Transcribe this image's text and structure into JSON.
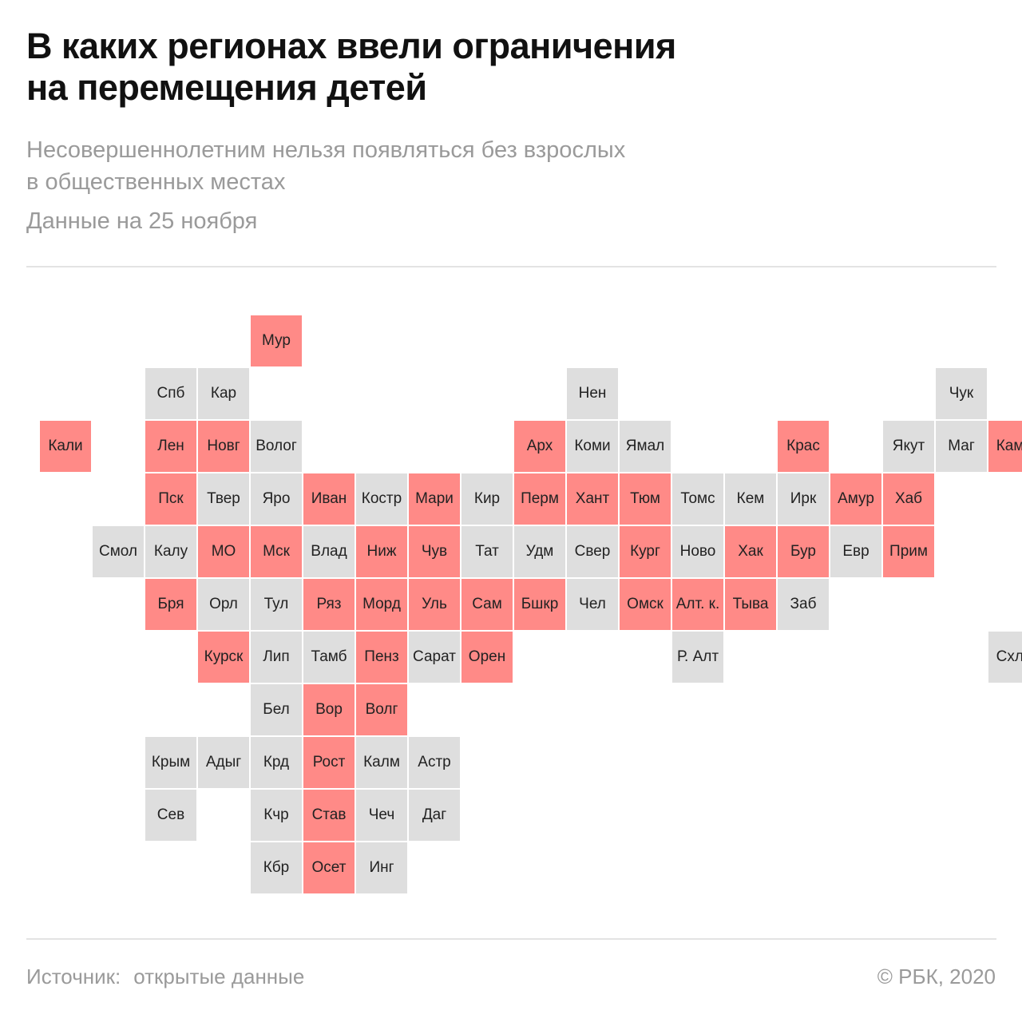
{
  "header": {
    "title_line1": "В каких регионах ввели ограничения",
    "title_line2": "на перемещения детей",
    "subtitle_line1": "Несовершеннолетним нельзя появляться без взрослых",
    "subtitle_line2": "в общественных местах",
    "date": "Данные на 25 ноября"
  },
  "colors": {
    "restricted": "#ff8a87",
    "unrestricted": "#dedede"
  },
  "map": {
    "tiles": [
      {
        "label": "Мур",
        "row": 0,
        "col": 4,
        "restricted": true
      },
      {
        "label": "Спб",
        "row": 1,
        "col": 2,
        "restricted": false
      },
      {
        "label": "Кар",
        "row": 1,
        "col": 3,
        "restricted": false
      },
      {
        "label": "Нен",
        "row": 1,
        "col": 10,
        "restricted": false
      },
      {
        "label": "Чук",
        "row": 1,
        "col": 17,
        "restricted": false
      },
      {
        "label": "Кали",
        "row": 2,
        "col": 0,
        "restricted": true
      },
      {
        "label": "Лен",
        "row": 2,
        "col": 2,
        "restricted": true
      },
      {
        "label": "Новг",
        "row": 2,
        "col": 3,
        "restricted": true
      },
      {
        "label": "Волог",
        "row": 2,
        "col": 4,
        "restricted": false
      },
      {
        "label": "Арх",
        "row": 2,
        "col": 9,
        "restricted": true
      },
      {
        "label": "Коми",
        "row": 2,
        "col": 10,
        "restricted": false
      },
      {
        "label": "Ямал",
        "row": 2,
        "col": 11,
        "restricted": false
      },
      {
        "label": "Крас",
        "row": 2,
        "col": 14,
        "restricted": true
      },
      {
        "label": "Якут",
        "row": 2,
        "col": 16,
        "restricted": false
      },
      {
        "label": "Маг",
        "row": 2,
        "col": 17,
        "restricted": false
      },
      {
        "label": "Камч",
        "row": 2,
        "col": 18,
        "restricted": true
      },
      {
        "label": "Пск",
        "row": 3,
        "col": 2,
        "restricted": true
      },
      {
        "label": "Твер",
        "row": 3,
        "col": 3,
        "restricted": false
      },
      {
        "label": "Яро",
        "row": 3,
        "col": 4,
        "restricted": false
      },
      {
        "label": "Иван",
        "row": 3,
        "col": 5,
        "restricted": true
      },
      {
        "label": "Костр",
        "row": 3,
        "col": 6,
        "restricted": false
      },
      {
        "label": "Мари",
        "row": 3,
        "col": 7,
        "restricted": true
      },
      {
        "label": "Кир",
        "row": 3,
        "col": 8,
        "restricted": false
      },
      {
        "label": "Перм",
        "row": 3,
        "col": 9,
        "restricted": true
      },
      {
        "label": "Хант",
        "row": 3,
        "col": 10,
        "restricted": true
      },
      {
        "label": "Тюм",
        "row": 3,
        "col": 11,
        "restricted": true
      },
      {
        "label": "Томс",
        "row": 3,
        "col": 12,
        "restricted": false
      },
      {
        "label": "Кем",
        "row": 3,
        "col": 13,
        "restricted": false
      },
      {
        "label": "Ирк",
        "row": 3,
        "col": 14,
        "restricted": false
      },
      {
        "label": "Амур",
        "row": 3,
        "col": 15,
        "restricted": true
      },
      {
        "label": "Хаб",
        "row": 3,
        "col": 16,
        "restricted": true
      },
      {
        "label": "Смол",
        "row": 4,
        "col": 1,
        "restricted": false
      },
      {
        "label": "Калу",
        "row": 4,
        "col": 2,
        "restricted": false
      },
      {
        "label": "МО",
        "row": 4,
        "col": 3,
        "restricted": true
      },
      {
        "label": "Мск",
        "row": 4,
        "col": 4,
        "restricted": true
      },
      {
        "label": "Влад",
        "row": 4,
        "col": 5,
        "restricted": false
      },
      {
        "label": "Ниж",
        "row": 4,
        "col": 6,
        "restricted": true
      },
      {
        "label": "Чув",
        "row": 4,
        "col": 7,
        "restricted": true
      },
      {
        "label": "Тат",
        "row": 4,
        "col": 8,
        "restricted": false
      },
      {
        "label": "Удм",
        "row": 4,
        "col": 9,
        "restricted": false
      },
      {
        "label": "Свер",
        "row": 4,
        "col": 10,
        "restricted": false
      },
      {
        "label": "Кург",
        "row": 4,
        "col": 11,
        "restricted": true
      },
      {
        "label": "Ново",
        "row": 4,
        "col": 12,
        "restricted": false
      },
      {
        "label": "Хак",
        "row": 4,
        "col": 13,
        "restricted": true
      },
      {
        "label": "Бур",
        "row": 4,
        "col": 14,
        "restricted": true
      },
      {
        "label": "Евр",
        "row": 4,
        "col": 15,
        "restricted": false
      },
      {
        "label": "Прим",
        "row": 4,
        "col": 16,
        "restricted": true
      },
      {
        "label": "Бря",
        "row": 5,
        "col": 2,
        "restricted": true
      },
      {
        "label": "Орл",
        "row": 5,
        "col": 3,
        "restricted": false
      },
      {
        "label": "Тул",
        "row": 5,
        "col": 4,
        "restricted": false
      },
      {
        "label": "Ряз",
        "row": 5,
        "col": 5,
        "restricted": true
      },
      {
        "label": "Морд",
        "row": 5,
        "col": 6,
        "restricted": true
      },
      {
        "label": "Уль",
        "row": 5,
        "col": 7,
        "restricted": true
      },
      {
        "label": "Сам",
        "row": 5,
        "col": 8,
        "restricted": true
      },
      {
        "label": "Бшкр",
        "row": 5,
        "col": 9,
        "restricted": true
      },
      {
        "label": "Чел",
        "row": 5,
        "col": 10,
        "restricted": false
      },
      {
        "label": "Омск",
        "row": 5,
        "col": 11,
        "restricted": true
      },
      {
        "label": "Алт. к.",
        "row": 5,
        "col": 12,
        "restricted": true
      },
      {
        "label": "Тыва",
        "row": 5,
        "col": 13,
        "restricted": true
      },
      {
        "label": "Заб",
        "row": 5,
        "col": 14,
        "restricted": false
      },
      {
        "label": "Курск",
        "row": 6,
        "col": 3,
        "restricted": true
      },
      {
        "label": "Лип",
        "row": 6,
        "col": 4,
        "restricted": false
      },
      {
        "label": "Тамб",
        "row": 6,
        "col": 5,
        "restricted": false
      },
      {
        "label": "Пенз",
        "row": 6,
        "col": 6,
        "restricted": true
      },
      {
        "label": "Сарат",
        "row": 6,
        "col": 7,
        "restricted": false
      },
      {
        "label": "Орен",
        "row": 6,
        "col": 8,
        "restricted": true
      },
      {
        "label": "Р. Алт",
        "row": 6,
        "col": 12,
        "restricted": false
      },
      {
        "label": "Схлн",
        "row": 6,
        "col": 18,
        "restricted": false
      },
      {
        "label": "Бел",
        "row": 7,
        "col": 4,
        "restricted": false
      },
      {
        "label": "Вор",
        "row": 7,
        "col": 5,
        "restricted": true
      },
      {
        "label": "Волг",
        "row": 7,
        "col": 6,
        "restricted": true
      },
      {
        "label": "Крым",
        "row": 8,
        "col": 2,
        "restricted": false
      },
      {
        "label": "Адыг",
        "row": 8,
        "col": 3,
        "restricted": false
      },
      {
        "label": "Крд",
        "row": 8,
        "col": 4,
        "restricted": false
      },
      {
        "label": "Рост",
        "row": 8,
        "col": 5,
        "restricted": true
      },
      {
        "label": "Калм",
        "row": 8,
        "col": 6,
        "restricted": false
      },
      {
        "label": "Астр",
        "row": 8,
        "col": 7,
        "restricted": false
      },
      {
        "label": "Сев",
        "row": 9,
        "col": 2,
        "restricted": false
      },
      {
        "label": "Кчр",
        "row": 9,
        "col": 4,
        "restricted": false
      },
      {
        "label": "Став",
        "row": 9,
        "col": 5,
        "restricted": true
      },
      {
        "label": "Чеч",
        "row": 9,
        "col": 6,
        "restricted": false
      },
      {
        "label": "Даг",
        "row": 9,
        "col": 7,
        "restricted": false
      },
      {
        "label": "Кбр",
        "row": 10,
        "col": 4,
        "restricted": false
      },
      {
        "label": "Осет",
        "row": 10,
        "col": 5,
        "restricted": true
      },
      {
        "label": "Инг",
        "row": 10,
        "col": 6,
        "restricted": false
      }
    ]
  },
  "footer": {
    "source_label": "Источник:",
    "source_value": "открытые данные",
    "copyright": "© РБК, 2020"
  }
}
